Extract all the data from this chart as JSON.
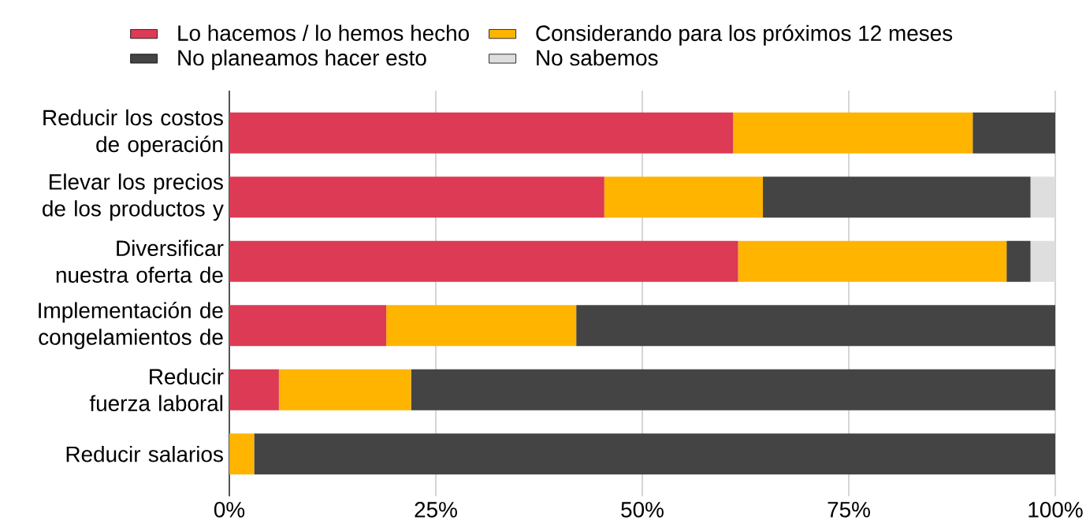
{
  "chart_data": {
    "type": "bar",
    "orientation": "horizontal",
    "stacked": true,
    "categories": [
      "Reducir los costos de operación",
      "Elevar los precios de los productos y",
      "Diversificar nuestra oferta de",
      "Implementación de congelamientos de",
      "Reducir fuerza laboral",
      "Reducir salarios"
    ],
    "series": [
      {
        "name": "Lo hacemos / lo hemos hecho",
        "color": "#dc3a55",
        "values": [
          61,
          45.4,
          61.6,
          19,
          6,
          0
        ]
      },
      {
        "name": "Considerando para los próximos 12 meses",
        "color": "#ffb400",
        "values": [
          29,
          19.2,
          32.5,
          23,
          16,
          3
        ]
      },
      {
        "name": "No planeamos hacer esto",
        "color": "#444444",
        "values": [
          10,
          32.4,
          2.9,
          58,
          78,
          97
        ]
      },
      {
        "name": "No sabemos",
        "color": "#dedede",
        "values": [
          0,
          3,
          3,
          0,
          0,
          0
        ]
      }
    ],
    "xlim": [
      0,
      100
    ],
    "xticks": [
      {
        "value": 0,
        "label": "0%"
      },
      {
        "value": 25,
        "label": "25%"
      },
      {
        "value": 50,
        "label": "50%"
      },
      {
        "value": 75,
        "label": "75%"
      },
      {
        "value": 100,
        "label": "100%"
      }
    ],
    "grid": "x",
    "legend": "top"
  }
}
